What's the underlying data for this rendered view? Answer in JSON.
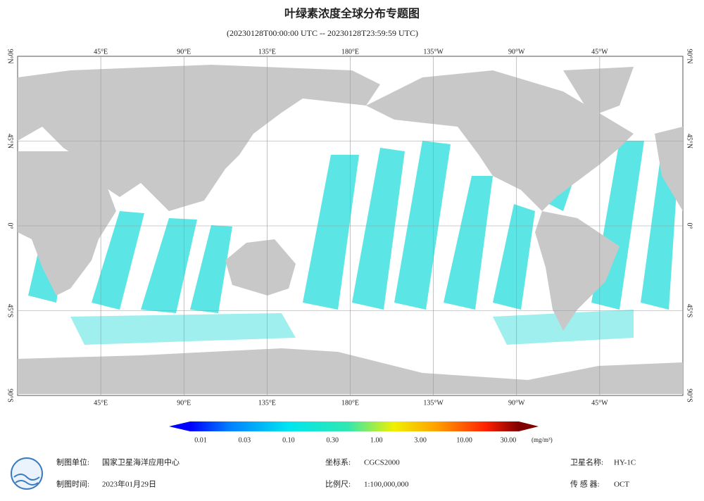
{
  "title": "叶绿素浓度全球分布专题图",
  "subtitle": "(20230128T00:00:00 UTC -- 20230128T23:59:59 UTC)",
  "map": {
    "lon_labels": [
      "45°E",
      "90°E",
      "135°E",
      "180°E",
      "135°W",
      "90°W",
      "45°W"
    ],
    "lat_labels": [
      "90°N",
      "45°N",
      "0°",
      "45°S",
      "90°S"
    ]
  },
  "colorbar": {
    "ticks": [
      "0.01",
      "0.03",
      "0.10",
      "0.30",
      "1.00",
      "3.00",
      "10.00",
      "30.00"
    ],
    "unit": "(mg/m³)"
  },
  "footer": {
    "unit_label": "制图单位:",
    "unit": "国家卫星海洋应用中心",
    "time_label": "制图时间:",
    "time": "2023年01月29日",
    "crs_label": "坐标系:",
    "crs": "CGCS2000",
    "scale_label": "比例尺:",
    "scale": "1:100,000,000",
    "satellite_label": "卫星名称:",
    "satellite": "HY-1C",
    "sensor_label": "传 感 器:",
    "sensor": "OCT"
  }
}
